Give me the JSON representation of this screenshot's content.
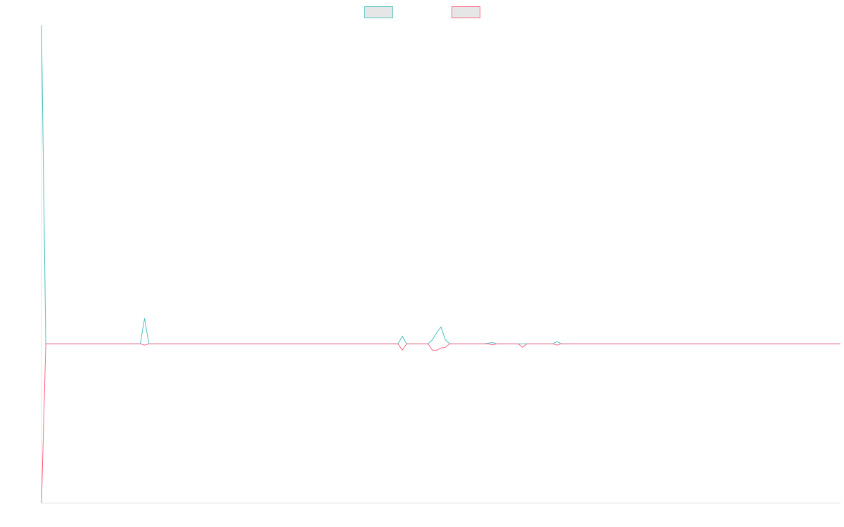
{
  "chart_data": {
    "type": "line",
    "legend": "top",
    "xlim": [
      0,
      186
    ],
    "ylim": [
      -50,
      100
    ],
    "series": [
      {
        "color": "#4bc0c0",
        "x": [
          0,
          1,
          23,
          24,
          25,
          83,
          84,
          85,
          90,
          91,
          92,
          93,
          94,
          95,
          103,
          104,
          105,
          106,
          119,
          120,
          121,
          186
        ],
        "values": [
          100,
          0,
          0,
          8,
          0,
          0,
          2.4,
          0,
          0,
          1.3,
          3.5,
          5.3,
          1.3,
          0,
          0,
          0.2,
          0.4,
          0,
          0,
          0.7,
          0,
          0
        ]
      },
      {
        "color": "#ff6384",
        "x": [
          0,
          1,
          23,
          24,
          25,
          83,
          84,
          85,
          90,
          91,
          92,
          93,
          94,
          95,
          104,
          105,
          106,
          111,
          112,
          113,
          119,
          120,
          121,
          186
        ],
        "values": [
          -50,
          0,
          0,
          -0.4,
          0,
          0,
          -2,
          0,
          0,
          -2,
          -2,
          -1.3,
          -1.1,
          0,
          0,
          -0.3,
          0,
          0,
          -1.1,
          0,
          0,
          -0.4,
          0,
          0
        ]
      }
    ]
  }
}
